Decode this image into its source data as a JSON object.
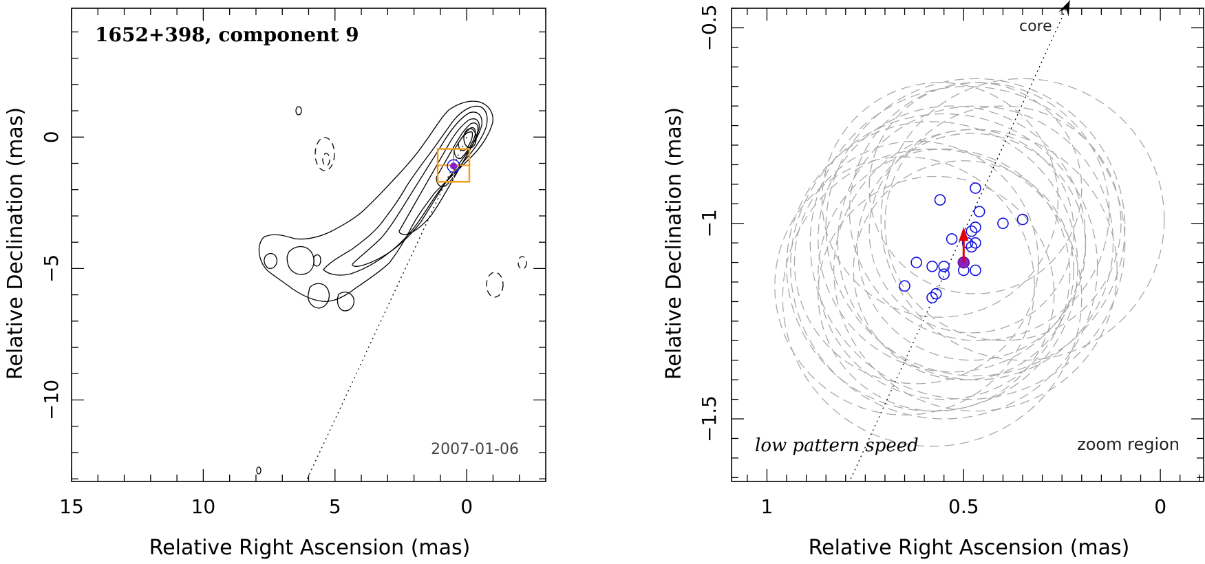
{
  "chart_data": [
    {
      "type": "contour",
      "title": "1652+398, component 9",
      "epoch": "2007-01-06",
      "xlabel": "Relative Right Ascension (mas)",
      "ylabel": "Relative Declination (mas)",
      "xlim": [
        15,
        -3
      ],
      "ylim": [
        -13.1,
        4.9
      ],
      "xticks_major": [
        15,
        10,
        5,
        0
      ],
      "yticks_major": [
        0,
        -5,
        -10
      ],
      "core_position": [
        0,
        0
      ],
      "component_position": [
        0.5,
        -1.1
      ],
      "zoom_box": {
        "x": [
          1.1,
          -0.1
        ],
        "y": [
          -0.45,
          -1.7
        ]
      },
      "pa_line": {
        "from": [
          0,
          0
        ],
        "to": [
          6.1,
          -13.1
        ]
      }
    },
    {
      "type": "scatter",
      "xlabel": "Relative Right Ascension (mas)",
      "ylabel": "Relative Declination (mas)",
      "xlim": [
        1.09,
        -0.11
      ],
      "ylim": [
        -1.66,
        -0.45
      ],
      "xticks_major": [
        1,
        0.5,
        0
      ],
      "yticks_major": [
        -0.5,
        -1,
        -1.5
      ],
      "xtick_labels": [
        "1",
        "0.5",
        "0"
      ],
      "ytick_labels": [
        "−0.5",
        "−1",
        "−1.5"
      ],
      "annotations": {
        "core": "core",
        "speed": "low pattern speed",
        "zoom": "zoom region"
      },
      "epoch_positions": {
        "x": [
          0.47,
          0.56,
          0.46,
          0.35,
          0.4,
          0.47,
          0.48,
          0.53,
          0.49,
          0.48,
          0.47,
          0.62,
          0.58,
          0.55,
          0.55,
          0.5,
          0.47,
          0.65,
          0.57,
          0.58
        ],
        "y": [
          -0.91,
          -0.94,
          -0.97,
          -0.99,
          -1.0,
          -1.01,
          -1.02,
          -1.04,
          -1.05,
          -1.06,
          -1.05,
          -1.1,
          -1.11,
          -1.13,
          -1.11,
          -1.12,
          -1.12,
          -1.16,
          -1.18,
          -1.19
        ]
      },
      "mean_position": {
        "x": 0.5,
        "y": -1.1
      },
      "velocity_vector": {
        "from": [
          0.5,
          -1.1
        ],
        "to": [
          0.5,
          -1.02
        ]
      },
      "error_circles": [
        {
          "x": 0.47,
          "y": -0.91,
          "r": 0.27
        },
        {
          "x": 0.56,
          "y": -0.94,
          "r": 0.3
        },
        {
          "x": 0.46,
          "y": -0.97,
          "r": 0.33
        },
        {
          "x": 0.35,
          "y": -0.99,
          "r": 0.36
        },
        {
          "x": 0.4,
          "y": -1.0,
          "r": 0.3
        },
        {
          "x": 0.47,
          "y": -1.01,
          "r": 0.38
        },
        {
          "x": 0.48,
          "y": -1.02,
          "r": 0.26
        },
        {
          "x": 0.53,
          "y": -1.04,
          "r": 0.34
        },
        {
          "x": 0.49,
          "y": -1.05,
          "r": 0.4
        },
        {
          "x": 0.48,
          "y": -1.06,
          "r": 0.29
        },
        {
          "x": 0.47,
          "y": -1.05,
          "r": 0.35
        },
        {
          "x": 0.62,
          "y": -1.1,
          "r": 0.31
        },
        {
          "x": 0.58,
          "y": -1.11,
          "r": 0.37
        },
        {
          "x": 0.55,
          "y": -1.13,
          "r": 0.32
        },
        {
          "x": 0.55,
          "y": -1.11,
          "r": 0.39
        },
        {
          "x": 0.5,
          "y": -1.12,
          "r": 0.28
        },
        {
          "x": 0.47,
          "y": -1.12,
          "r": 0.36
        },
        {
          "x": 0.65,
          "y": -1.16,
          "r": 0.33
        },
        {
          "x": 0.57,
          "y": -1.18,
          "r": 0.3
        },
        {
          "x": 0.58,
          "y": -1.19,
          "r": 0.38
        }
      ],
      "pa_line": {
        "from": [
          0.23,
          -0.43
        ],
        "to": [
          0.79,
          -1.66
        ]
      }
    }
  ],
  "colors": {
    "axis": "#000000",
    "point": "#1010e0",
    "mean": "#8a20c8",
    "vector": "#e00000",
    "zoom_box": "#f0a020",
    "error": "#a8a8a8"
  }
}
